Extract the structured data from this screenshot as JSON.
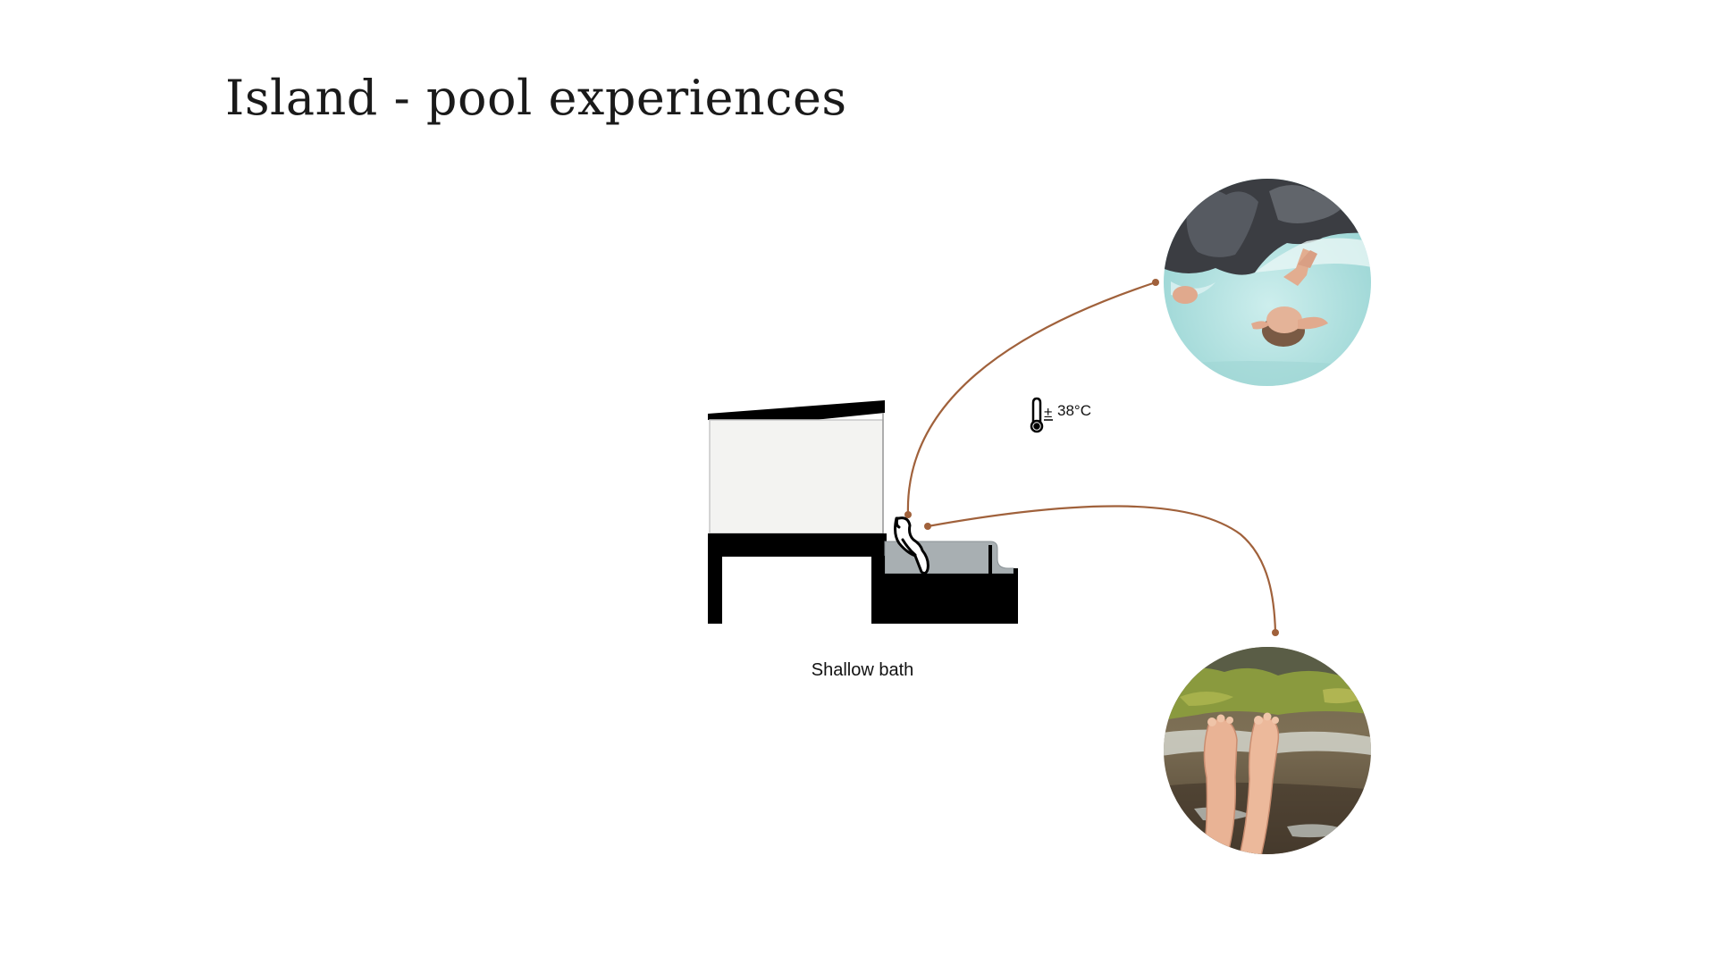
{
  "title": "Island - pool experiences",
  "diagram": {
    "caption": "Shallow bath",
    "temperature": "38°C",
    "temperature_prefix": "±",
    "accent_color": "#a0613b",
    "icons": [
      "thermometer-icon",
      "person-bathing-icon"
    ],
    "photos": [
      {
        "name": "bathers-in-lagoon-photo"
      },
      {
        "name": "feet-in-stream-photo"
      }
    ]
  }
}
